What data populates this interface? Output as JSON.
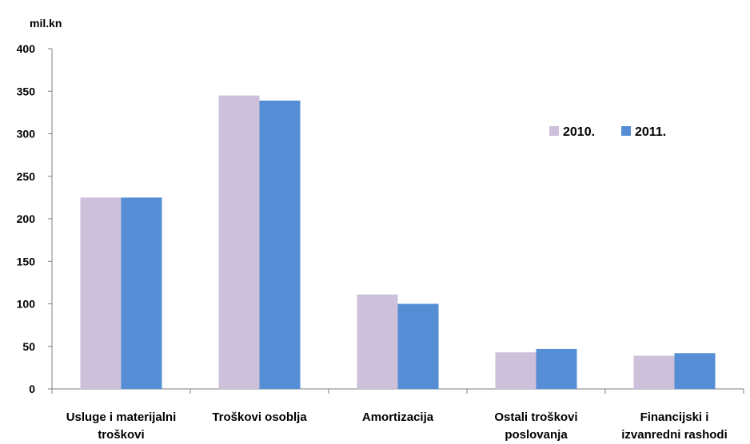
{
  "chart_data": {
    "type": "bar",
    "ylabel": "mil.kn",
    "ylim": [
      0,
      400
    ],
    "yticks": [
      0,
      50,
      100,
      150,
      200,
      250,
      300,
      350,
      400
    ],
    "categories": [
      [
        "Usluge i materijalni",
        "troškovi"
      ],
      [
        "Troškovi osoblja"
      ],
      [
        "Amortizacija"
      ],
      [
        "Ostali troškovi",
        "poslovanja"
      ],
      [
        "Financijski i",
        "izvanredni rashodi"
      ]
    ],
    "series": [
      {
        "name": "2010.",
        "color": "#ccc0da",
        "values": [
          225,
          345,
          111,
          43,
          39
        ]
      },
      {
        "name": "2011.",
        "color": "#558ed5",
        "values": [
          225,
          339,
          100,
          47,
          42
        ]
      }
    ],
    "grid": false,
    "legend_position": "top-right"
  }
}
